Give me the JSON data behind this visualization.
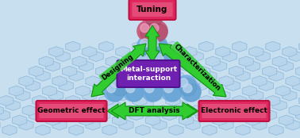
{
  "background_color": "#c8dff0",
  "grid_color": "#90b8d8",
  "grid_fill": "#b8d5ec",
  "sphere_color": "#78b0e0",
  "sphere_highlight": "#c0d8f0",
  "sphere_dark": "#5090c0",
  "sphere_top_color": "#c86080",
  "sphere_top_highlight": "#f0a0c0",
  "box_pink": "#e02860",
  "box_pink_edge": "#c01040",
  "box_pink_fill": "#e87090",
  "center_box_color": "#7020b0",
  "center_box_edge": "#501090",
  "arrow_green": "#30cc30",
  "arrow_green_dark": "#109010",
  "dft_box_color": "#50cc50",
  "dft_box_edge": "#20aa20",
  "title_tuning": "Tuning",
  "title_geo": "Geometric effect",
  "title_dft": "DFT analysis",
  "title_elec": "Electronic effect",
  "title_center": "Metal-support\ninteraction",
  "label_designing": "Designing",
  "label_charact": "Characterization",
  "figsize": [
    3.78,
    1.74
  ],
  "dpi": 100
}
